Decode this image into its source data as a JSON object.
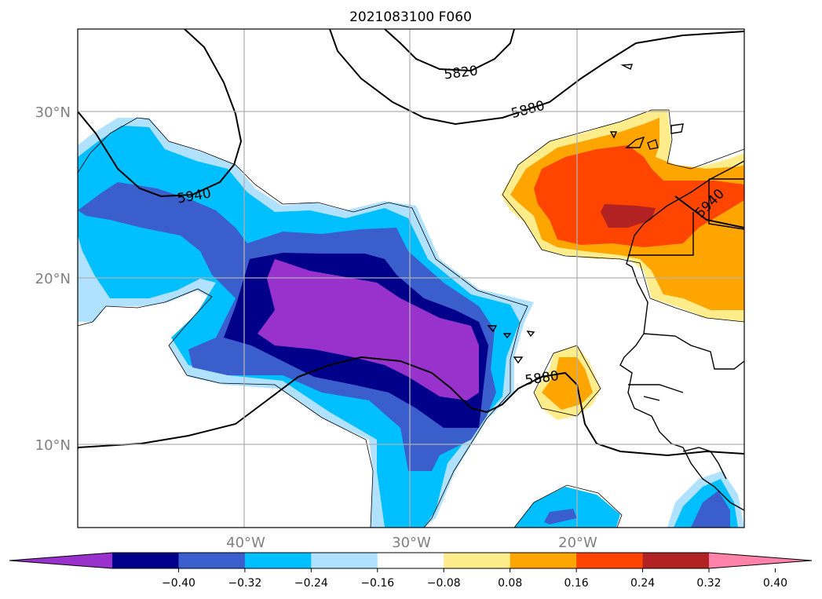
{
  "title": "2021083100 F060",
  "map": {
    "latitude_labels": [
      "30°N",
      "20°N",
      "10°N"
    ],
    "longitude_labels": [
      "40°W",
      "30°W",
      "20°W"
    ],
    "height_contour_labels": [
      "5820",
      "5880",
      "5940",
      "5880",
      "5940"
    ]
  },
  "colorbar": {
    "ticks": [
      "−0.40",
      "−0.32",
      "−0.24",
      "−0.16",
      "−0.08",
      "0.08",
      "0.16",
      "0.24",
      "0.32",
      "0.40"
    ],
    "colors": [
      "#9932cc",
      "#00008b",
      "#3a5fcd",
      "#00bfff",
      "#b0e2ff",
      "#ffffff",
      "#ffec8b",
      "#ffa500",
      "#ff4500",
      "#b22222",
      "#ff82ab"
    ]
  },
  "colors": {
    "purple": "#9932cc",
    "navy": "#00008b",
    "royal_blue": "#3a5fcd",
    "sky_blue": "#00bfff",
    "light_blue": "#b0e2ff",
    "light_yellow": "#ffec8b",
    "orange": "#ffa500",
    "orange_red": "#ff4500",
    "firebrick": "#b22222",
    "pink": "#ff82ab",
    "grid": "#b0b0b0",
    "label_gray": "#808080"
  }
}
